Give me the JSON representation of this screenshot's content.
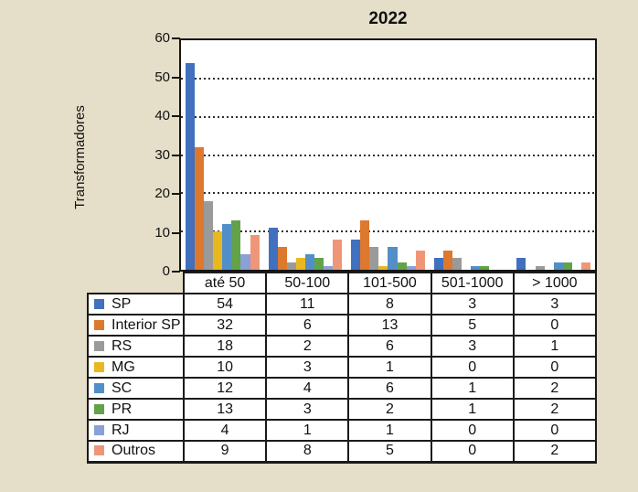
{
  "page": {
    "background_color": "#E5DEC8"
  },
  "chart_data": {
    "type": "bar",
    "title": "2022",
    "ylabel": "Transformadores",
    "xlabel": "",
    "categories": [
      "até 50",
      "50-100",
      "101-500",
      "501-1000",
      "> 1000"
    ],
    "series": [
      {
        "name": "SP",
        "color": "#4170BE",
        "values": [
          54,
          11,
          8,
          3,
          3
        ]
      },
      {
        "name": "Interior SP",
        "color": "#DD782F",
        "values": [
          32,
          6,
          13,
          5,
          0
        ]
      },
      {
        "name": "RS",
        "color": "#9A9A9A",
        "values": [
          18,
          2,
          6,
          3,
          1
        ]
      },
      {
        "name": "MG",
        "color": "#E9B821",
        "values": [
          10,
          3,
          1,
          0,
          0
        ]
      },
      {
        "name": "SC",
        "color": "#528FC9",
        "values": [
          12,
          4,
          6,
          1,
          2
        ]
      },
      {
        "name": "PR",
        "color": "#62A348",
        "values": [
          13,
          3,
          2,
          1,
          2
        ]
      },
      {
        "name": "RJ",
        "color": "#8BA0D5",
        "values": [
          4,
          1,
          1,
          0,
          0
        ]
      },
      {
        "name": "Outros",
        "color": "#EF9678",
        "values": [
          9,
          8,
          5,
          0,
          2
        ]
      }
    ],
    "ylim": [
      0,
      60
    ],
    "yticks": [
      0,
      10,
      20,
      30,
      40,
      50,
      60
    ],
    "grid": "horizontal-dotted",
    "legend_position": "table-below",
    "plot_background": "#FFFFFF",
    "frame_color": "#141414"
  }
}
